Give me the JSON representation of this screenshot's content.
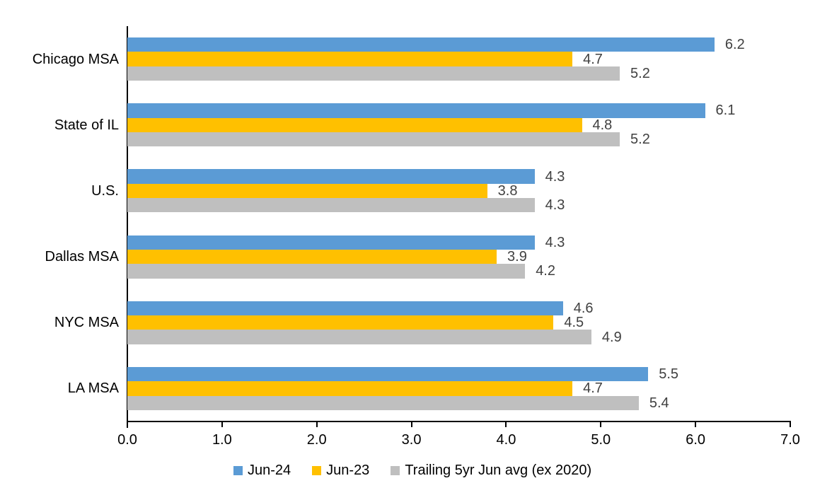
{
  "chart_data": {
    "type": "bar",
    "orientation": "horizontal",
    "title": "",
    "xlabel": "",
    "ylabel": "",
    "categories": [
      "Chicago MSA",
      "State of IL",
      "U.S.",
      "Dallas MSA",
      "NYC MSA",
      "LA MSA"
    ],
    "series": [
      {
        "name": "Jun-24",
        "color": "#5B9BD5",
        "values": [
          6.2,
          6.1,
          4.3,
          4.3,
          4.6,
          5.5
        ]
      },
      {
        "name": "Jun-23",
        "color": "#FFC000",
        "values": [
          4.7,
          4.8,
          3.8,
          3.9,
          4.5,
          4.7
        ]
      },
      {
        "name": "Trailing 5yr Jun avg (ex 2020)",
        "color": "#BFBFBF",
        "values": [
          5.2,
          5.2,
          4.3,
          4.2,
          4.9,
          5.4
        ]
      }
    ],
    "xlim": [
      0.0,
      7.0
    ],
    "x_tick_values": [
      0,
      1,
      2,
      3,
      4,
      5,
      6,
      7
    ],
    "x_tick_labels": [
      "0.0",
      "1.0",
      "2.0",
      "3.0",
      "4.0",
      "5.0",
      "6.0",
      "7.0"
    ],
    "grid": false,
    "data_labels": true,
    "data_label_decimals": 1,
    "legend_position": "bottom",
    "colors": {
      "axis": "#000000",
      "data_label": "#404040",
      "text": "#000000",
      "background": "#FFFFFF"
    }
  }
}
